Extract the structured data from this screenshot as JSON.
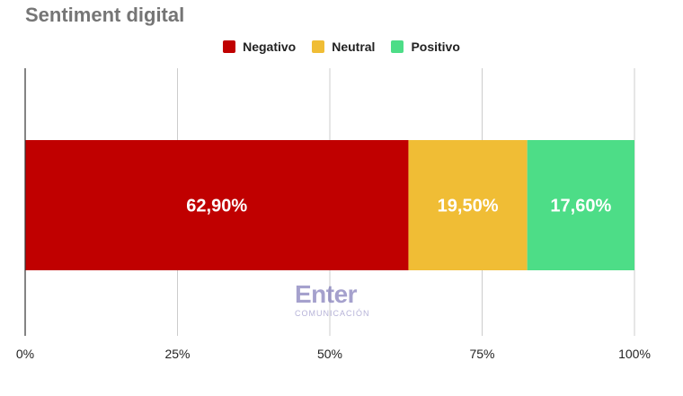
{
  "chart_data": {
    "type": "bar",
    "orientation": "horizontal",
    "stacked": true,
    "title": "Sentiment digital",
    "xlabel": "",
    "ylabel": "",
    "xlim": [
      0,
      100
    ],
    "ticks": [
      "0%",
      "25%",
      "50%",
      "75%",
      "100%"
    ],
    "tick_values": [
      0,
      25,
      50,
      75,
      100
    ],
    "grid": true,
    "legend_position": "top-center",
    "series": [
      {
        "name": "Negativo",
        "values": [
          62.9
        ],
        "label": "62,90%",
        "color": "#c00000"
      },
      {
        "name": "Neutral",
        "values": [
          19.5
        ],
        "label": "19,50%",
        "color": "#f0bd35"
      },
      {
        "name": "Positivo",
        "values": [
          17.6
        ],
        "label": "17,60%",
        "color": "#4ddd87"
      }
    ]
  },
  "watermark": {
    "word": "Enter",
    "sub": "COMUNICACIÓN"
  }
}
